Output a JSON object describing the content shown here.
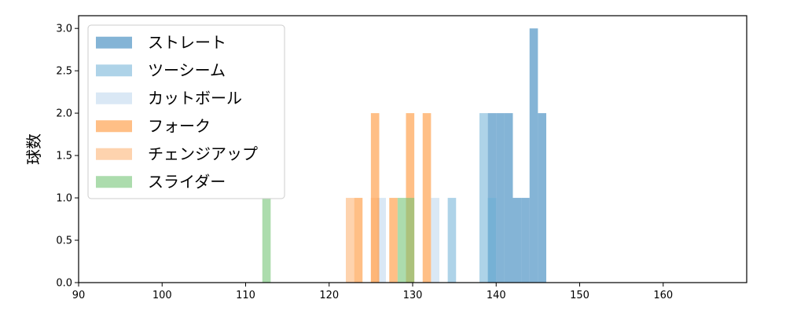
{
  "chart_data": {
    "type": "bar",
    "subtype": "histogram",
    "xlabel": "",
    "ylabel": "球数",
    "xlim": [
      90,
      170
    ],
    "ylim": [
      0,
      3.15
    ],
    "xticks": [
      "90",
      "100",
      "110",
      "120",
      "130",
      "140",
      "150",
      "160"
    ],
    "yticks": [
      "0.0",
      "0.5",
      "1.0",
      "1.5",
      "2.0",
      "2.5",
      "3.0"
    ],
    "bin_width": 1,
    "legend_position": "upper-left",
    "grid": false,
    "series": [
      {
        "name": "ストレート",
        "color": "#1f77b4",
        "opacity": 0.55,
        "bins": [
          {
            "x0": 139,
            "x1": 140,
            "count": 2
          },
          {
            "x0": 140,
            "x1": 141,
            "count": 2
          },
          {
            "x0": 141,
            "x1": 142,
            "count": 2
          },
          {
            "x0": 142,
            "x1": 143,
            "count": 1
          },
          {
            "x0": 143,
            "x1": 144,
            "count": 1
          },
          {
            "x0": 144,
            "x1": 145,
            "count": 3
          },
          {
            "x0": 145,
            "x1": 146,
            "count": 2
          }
        ]
      },
      {
        "name": "ツーシーム",
        "color": "#6baed6",
        "opacity": 0.55,
        "bins": [
          {
            "x0": 134.2,
            "x1": 135.2,
            "count": 1
          },
          {
            "x0": 138,
            "x1": 139,
            "count": 2
          },
          {
            "x0": 139,
            "x1": 140,
            "count": 1
          }
        ]
      },
      {
        "name": "カットボール",
        "color": "#c6dbef",
        "opacity": 0.65,
        "bins": [
          {
            "x0": 125.8,
            "x1": 126.8,
            "count": 1
          },
          {
            "x0": 132.2,
            "x1": 133.2,
            "count": 1
          }
        ]
      },
      {
        "name": "フォーク",
        "color": "#ff7f0e",
        "opacity": 0.5,
        "bins": [
          {
            "x0": 123,
            "x1": 124,
            "count": 1
          },
          {
            "x0": 125,
            "x1": 126,
            "count": 2
          },
          {
            "x0": 127.2,
            "x1": 128.2,
            "count": 1
          },
          {
            "x0": 129.2,
            "x1": 130.2,
            "count": 2
          },
          {
            "x0": 131.2,
            "x1": 132.2,
            "count": 2
          }
        ]
      },
      {
        "name": "チェンジアップ",
        "color": "#fdae6b",
        "opacity": 0.55,
        "bins": [
          {
            "x0": 122,
            "x1": 123,
            "count": 1
          },
          {
            "x0": 125,
            "x1": 126,
            "count": 1
          }
        ]
      },
      {
        "name": "スライダー",
        "color": "#74c476",
        "opacity": 0.6,
        "bins": [
          {
            "x0": 112,
            "x1": 113,
            "count": 1
          },
          {
            "x0": 128.2,
            "x1": 129.2,
            "count": 1
          },
          {
            "x0": 129.2,
            "x1": 130.2,
            "count": 1
          }
        ]
      }
    ]
  }
}
